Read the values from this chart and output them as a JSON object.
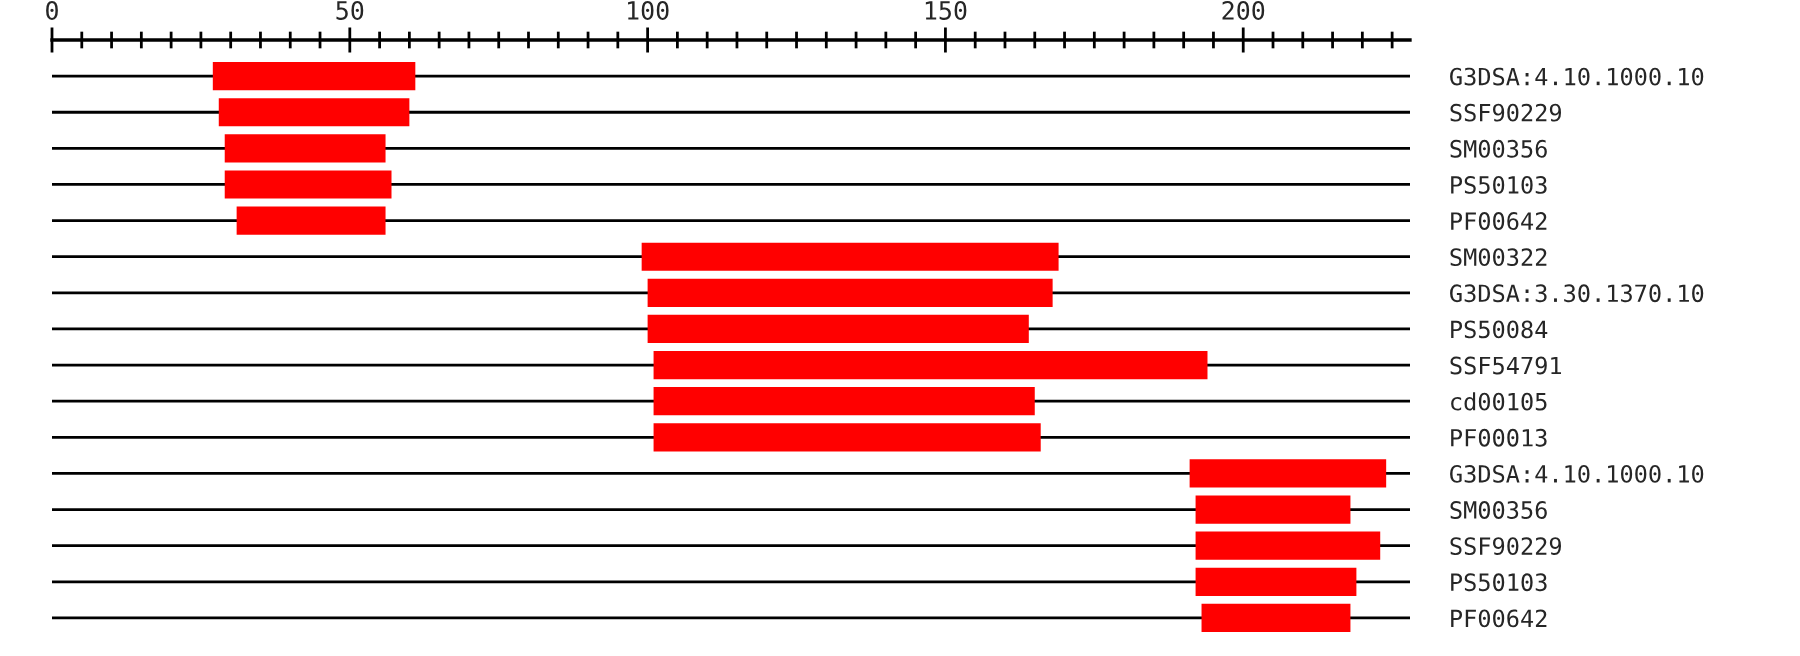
{
  "chart_data": {
    "type": "bar",
    "orientation": "horizontal",
    "categories": [
      "G3DSA:4.10.1000.10",
      "SSF90229",
      "SM00356",
      "PS50103",
      "PF00642",
      "SM00322",
      "G3DSA:3.30.1370.10",
      "PS50084",
      "SSF54791",
      "cd00105",
      "PF00013",
      "G3DSA:4.10.1000.10",
      "SM00356",
      "SSF90229",
      "PS50103",
      "PF00642"
    ],
    "base": [
      27,
      28,
      29,
      29,
      31,
      99,
      100,
      100,
      101,
      101,
      101,
      191,
      192,
      192,
      192,
      193
    ],
    "values": [
      34,
      32,
      27,
      28,
      25,
      70,
      68,
      64,
      93,
      64,
      65,
      33,
      26,
      31,
      27,
      25
    ],
    "color": "#ff0000",
    "xlim": [
      0,
      228
    ],
    "xticks": [
      0,
      {
        "value": 5,
        "label": null
      },
      {
        "value": 10,
        "label": null
      },
      {
        "value": 15,
        "label": null
      },
      {
        "value": 20,
        "label": null
      },
      {
        "value": 25,
        "label": null
      },
      {
        "value": 30,
        "label": null
      },
      {
        "value": 35,
        "label": null
      },
      {
        "value": 40,
        "label": null
      },
      {
        "value": 45,
        "label": null
      },
      50,
      {
        "value": 55,
        "label": null
      },
      {
        "value": 60,
        "label": null
      },
      {
        "value": 65,
        "label": null
      },
      {
        "value": 70,
        "label": null
      },
      {
        "value": 75,
        "label": null
      },
      {
        "value": 80,
        "label": null
      },
      {
        "value": 85,
        "label": null
      },
      {
        "value": 90,
        "label": null
      },
      {
        "value": 95,
        "label": null
      },
      100,
      {
        "value": 105,
        "label": null
      },
      {
        "value": 110,
        "label": null
      },
      {
        "value": 115,
        "label": null
      },
      {
        "value": 120,
        "label": null
      },
      {
        "value": 125,
        "label": null
      },
      {
        "value": 130,
        "label": null
      },
      {
        "value": 135,
        "label": null
      },
      {
        "value": 140,
        "label": null
      },
      {
        "value": 145,
        "label": null
      },
      150,
      {
        "value": 155,
        "label": null
      },
      {
        "value": 160,
        "label": null
      },
      {
        "value": 165,
        "label": null
      },
      {
        "value": 170,
        "label": null
      },
      {
        "value": 175,
        "label": null
      },
      {
        "value": 180,
        "label": null
      },
      {
        "value": 185,
        "label": null
      },
      {
        "value": 190,
        "label": null
      },
      {
        "value": 195,
        "label": null
      },
      200,
      {
        "value": 205,
        "label": null
      },
      {
        "value": 210,
        "label": null
      },
      {
        "value": 215,
        "label": null
      },
      {
        "value": 220,
        "label": null
      },
      {
        "value": 225,
        "label": null
      }
    ],
    "grid": "y",
    "legend": false
  }
}
